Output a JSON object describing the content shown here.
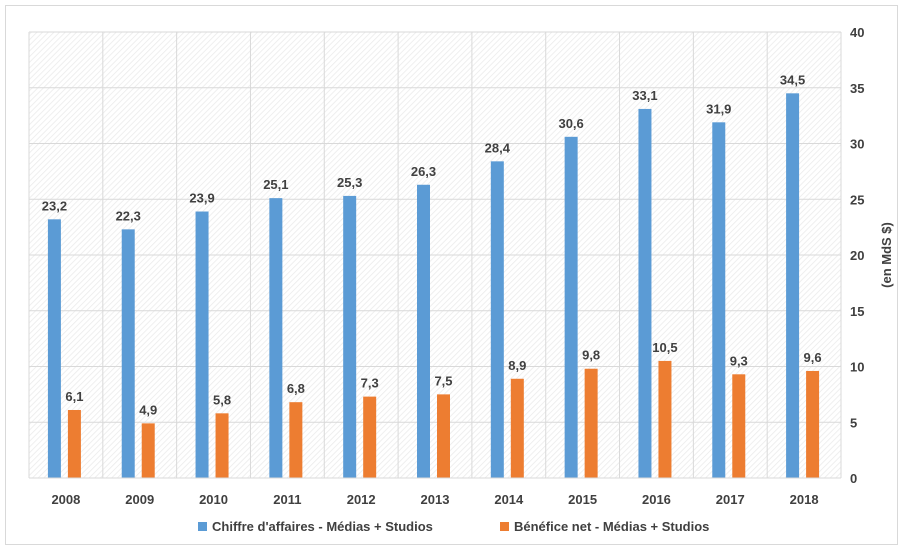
{
  "chart_data": {
    "type": "bar",
    "categories": [
      "2008",
      "2009",
      "2010",
      "2011",
      "2012",
      "2013",
      "2014",
      "2015",
      "2016",
      "2017",
      "2018"
    ],
    "series": [
      {
        "name": "Chiffre d'affaires - Médias + Studios",
        "color": "#5b9bd5",
        "values": [
          23.2,
          22.3,
          23.9,
          25.1,
          25.3,
          26.3,
          28.4,
          30.6,
          33.1,
          31.9,
          34.5
        ],
        "labels": [
          "23,2",
          "22,3",
          "23,9",
          "25,1",
          "25,3",
          "26,3",
          "28,4",
          "30,6",
          "33,1",
          "31,9",
          "34,5"
        ]
      },
      {
        "name": "Bénéfice net - Médias + Studios",
        "color": "#ed7d31",
        "values": [
          6.1,
          4.9,
          5.8,
          6.8,
          7.3,
          7.5,
          8.9,
          9.8,
          10.5,
          9.3,
          9.6
        ],
        "labels": [
          "6,1",
          "4,9",
          "5,8",
          "6,8",
          "7,3",
          "7,5",
          "8,9",
          "9,8",
          "10,5",
          "9,3",
          "9,6"
        ]
      }
    ],
    "ylabel": "(en MdS $)",
    "ylim": [
      0,
      40
    ],
    "yticks": [
      "0",
      "5",
      "10",
      "15",
      "20",
      "25",
      "30",
      "35",
      "40"
    ],
    "y_axis_side": "right",
    "grid": true,
    "legend_position": "bottom"
  }
}
